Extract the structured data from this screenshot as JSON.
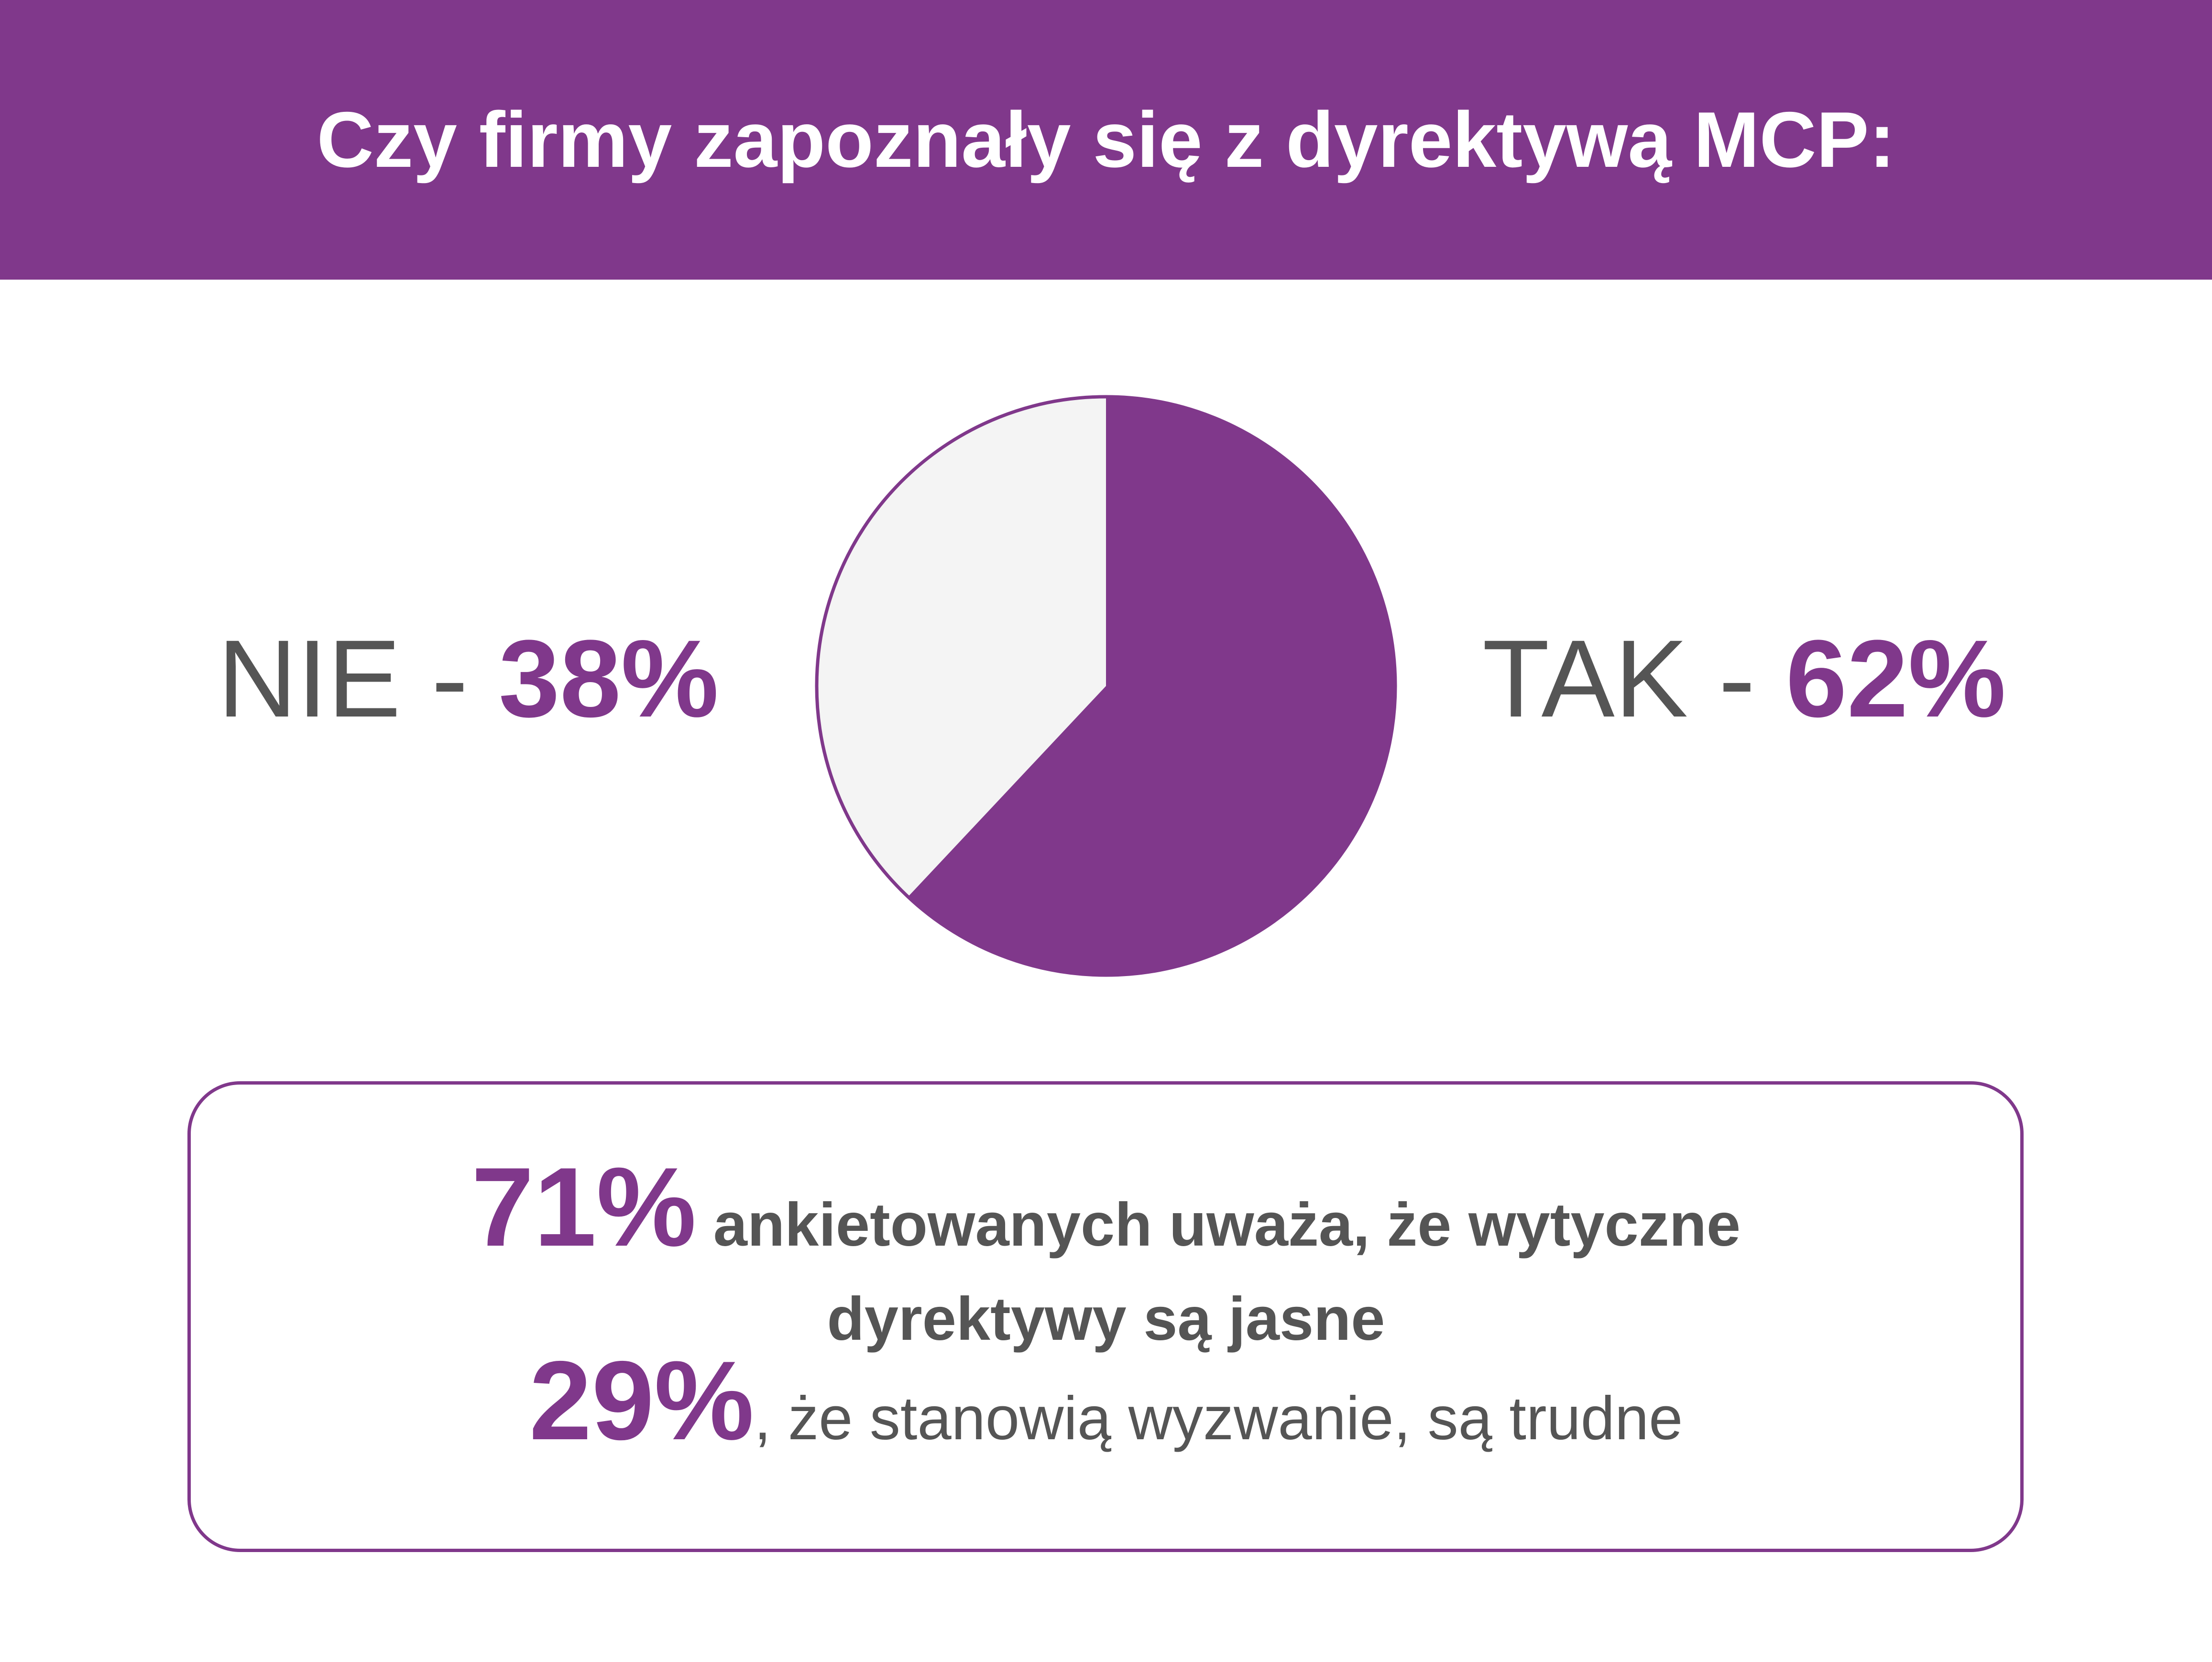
{
  "header": {
    "title": "Czy firmy zapoznały się z dyrektywą MCP:"
  },
  "chart_data": {
    "type": "pie",
    "title": "Czy firmy zapoznały się z dyrektywą MCP:",
    "categories": [
      "TAK",
      "NIE"
    ],
    "values": [
      62,
      38
    ],
    "unit": "%",
    "colors": [
      "#80388b",
      "#f4f4f4"
    ],
    "labels": [
      {
        "name": "NIE",
        "separator": " - ",
        "value": "38%"
      },
      {
        "name": "TAK",
        "separator": " - ",
        "value": "62%"
      }
    ]
  },
  "info": {
    "line1_pct": "71%",
    "line1_text": " ankietowanych uważa, że wytyczne",
    "line2_text": "dyrektywy są jasne",
    "line3_pct": "29%",
    "line3_text": ", że stanowią wyzwanie, są trudne"
  },
  "colors": {
    "accent": "#80388b",
    "text": "#555555",
    "pie_light": "#f4f4f4"
  }
}
